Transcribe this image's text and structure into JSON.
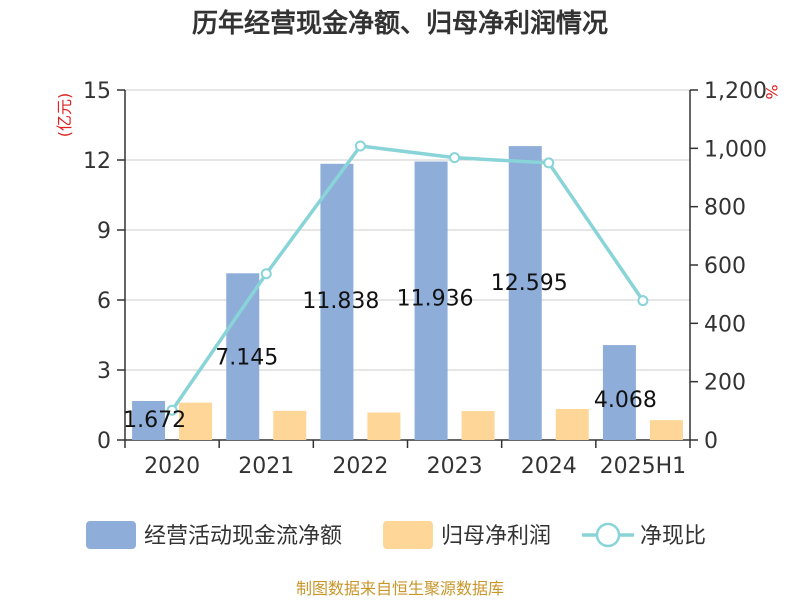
{
  "chart_data": {
    "type": "bar",
    "title": "历年经营现金净额、归母净利润情况",
    "left_unit": "(亿元)",
    "right_unit": "%",
    "categories": [
      "2020",
      "2021",
      "2022",
      "2023",
      "2024",
      "2025H1"
    ],
    "series": [
      {
        "name": "经营活动现金流净额",
        "type": "bar",
        "axis": "left",
        "color": "#8eadd9",
        "values": [
          1.672,
          7.145,
          11.838,
          11.936,
          12.595,
          4.068
        ],
        "labels": [
          "1.672",
          "7.145",
          "11.838",
          "11.936",
          "12.595",
          "4.068"
        ]
      },
      {
        "name": "归母净利润",
        "type": "bar",
        "axis": "left",
        "color": "#fdd698",
        "values": [
          1.6,
          1.25,
          1.18,
          1.24,
          1.33,
          0.85
        ]
      },
      {
        "name": "净现比",
        "type": "line",
        "axis": "right",
        "color": "#88d4d8",
        "values": [
          102,
          570,
          1008,
          968,
          950,
          478
        ]
      }
    ],
    "ylim_left": [
      0,
      15
    ],
    "yticks_left": [
      0,
      3,
      6,
      9,
      12,
      15
    ],
    "ytick_labels_left": [
      "0",
      "3",
      "6",
      "9",
      "12",
      "15"
    ],
    "ylim_right": [
      0,
      1200
    ],
    "yticks_right": [
      0,
      200,
      400,
      600,
      800,
      1000,
      1200
    ],
    "ytick_labels_right": [
      "0",
      "200",
      "400",
      "600",
      "800",
      "1,000",
      "1,200"
    ],
    "grid": true,
    "legend_position": "bottom"
  },
  "source": "制图数据来自恒生聚源数据库"
}
